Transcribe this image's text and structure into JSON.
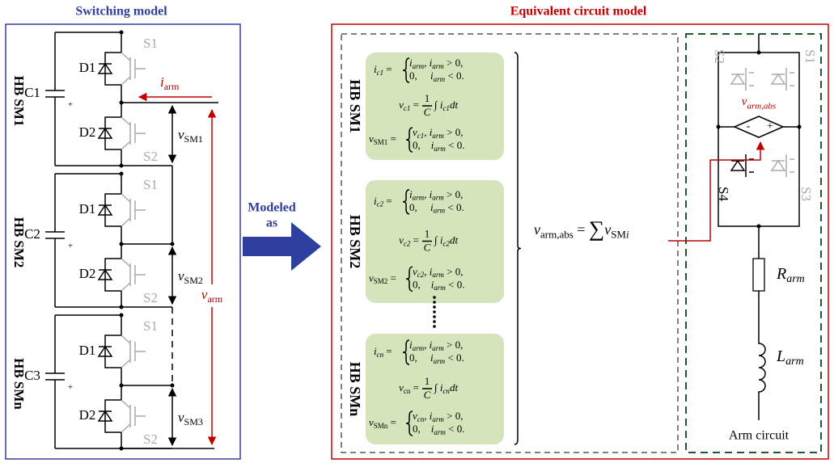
{
  "left": {
    "title": "Switching model",
    "current": [
      {
        "it": "i"
      },
      {
        "subr": "arm"
      }
    ],
    "arm_voltage": [
      {
        "it": "v"
      },
      {
        "subr": "arm"
      }
    ],
    "submodules": [
      {
        "name": "HB SM1",
        "capacitor": "C1",
        "plus": "+",
        "diode1": "D1",
        "diode2": "D2",
        "switch1": "S1",
        "switch2": "S2",
        "voltage": [
          {
            "it": "v"
          },
          {
            "subr": "SM1"
          }
        ]
      },
      {
        "name": "HB SM2",
        "capacitor": "C2",
        "plus": "+",
        "diode1": "D1",
        "diode2": "D2",
        "switch1": "S1",
        "switch2": "S2",
        "voltage": [
          {
            "it": "v"
          },
          {
            "subr": "SM2"
          }
        ]
      },
      {
        "name": "HB SMn",
        "capacitor": "C3",
        "plus": "+",
        "diode1": "D1",
        "diode2": "D2",
        "switch1": "S1",
        "switch2": "S2",
        "voltage": [
          {
            "it": "v"
          },
          {
            "subr": "SM3"
          }
        ]
      }
    ]
  },
  "middle": {
    "label": [
      "Modeled",
      "as"
    ]
  },
  "right": {
    "title": "Equivalent circuit model",
    "submodule_labels": [
      "HB SM1",
      "HB SM2",
      "HB SMn"
    ],
    "blocks": [
      {
        "i_lhs": [
          {
            "it": "i"
          },
          {
            "sub": "c1"
          },
          {
            "t": " ="
          }
        ],
        "i_cases": [
          [
            {
              "it": "i"
            },
            {
              "sub": "arm"
            },
            {
              "t": ", "
            },
            {
              "it": "i"
            },
            {
              "sub": "arm"
            },
            {
              "t": " > 0,"
            }
          ],
          [
            {
              "t": "0,     "
            },
            {
              "it": "i"
            },
            {
              "sub": "arm"
            },
            {
              "t": " < 0."
            }
          ]
        ],
        "v_lhs": [
          {
            "it": "v"
          },
          {
            "sub": "c1"
          },
          {
            "t": " ="
          }
        ],
        "frac": {
          "num": "1",
          "den": "C"
        },
        "v_rhs": [
          {
            "t": "∫ "
          },
          {
            "it": "i"
          },
          {
            "sub": "c1"
          },
          {
            "it": "dt"
          }
        ],
        "vsm_lhs": [
          {
            "it": "v"
          },
          {
            "subr": "SM1"
          },
          {
            "t": " ="
          }
        ],
        "vsm_cases": [
          [
            {
              "it": "v"
            },
            {
              "sub": "c1"
            },
            {
              "t": ", "
            },
            {
              "it": "i"
            },
            {
              "sub": "arm"
            },
            {
              "t": " > 0,"
            }
          ],
          [
            {
              "t": "0,    "
            },
            {
              "it": "i"
            },
            {
              "sub": "arm"
            },
            {
              "t": " < 0."
            }
          ]
        ]
      },
      {
        "i_lhs": [
          {
            "it": "i"
          },
          {
            "sub": "c2"
          },
          {
            "t": " ="
          }
        ],
        "i_cases": [
          [
            {
              "it": "i"
            },
            {
              "sub": "arm"
            },
            {
              "t": ", "
            },
            {
              "it": "i"
            },
            {
              "sub": "arm"
            },
            {
              "t": " > 0,"
            }
          ],
          [
            {
              "t": "0,     "
            },
            {
              "it": "i"
            },
            {
              "sub": "arm"
            },
            {
              "t": " < 0."
            }
          ]
        ],
        "v_lhs": [
          {
            "it": "v"
          },
          {
            "sub": "c2"
          },
          {
            "t": " ="
          }
        ],
        "frac": {
          "num": "1",
          "den": "C"
        },
        "v_rhs": [
          {
            "t": "∫ "
          },
          {
            "it": "i"
          },
          {
            "sub": "c2"
          },
          {
            "it": "dt"
          }
        ],
        "vsm_lhs": [
          {
            "it": "v"
          },
          {
            "subr": "SM2"
          },
          {
            "t": " ="
          }
        ],
        "vsm_cases": [
          [
            {
              "it": "v"
            },
            {
              "sub": "c2"
            },
            {
              "t": ", "
            },
            {
              "it": "i"
            },
            {
              "sub": "arm"
            },
            {
              "t": " > 0,"
            }
          ],
          [
            {
              "t": "0,    "
            },
            {
              "it": "i"
            },
            {
              "sub": "arm"
            },
            {
              "t": " < 0."
            }
          ]
        ]
      },
      {
        "i_lhs": [
          {
            "it": "i"
          },
          {
            "sub": "cn"
          },
          {
            "t": " ="
          }
        ],
        "i_cases": [
          [
            {
              "it": "i"
            },
            {
              "sub": "arm"
            },
            {
              "t": ", "
            },
            {
              "it": "i"
            },
            {
              "sub": "arm"
            },
            {
              "t": " > 0,"
            }
          ],
          [
            {
              "t": "0,     "
            },
            {
              "it": "i"
            },
            {
              "sub": "arm"
            },
            {
              "t": " < 0."
            }
          ]
        ],
        "v_lhs": [
          {
            "it": "v"
          },
          {
            "subr": "cn"
          },
          {
            "t": " ="
          }
        ],
        "frac": {
          "num": "1",
          "den": "C"
        },
        "v_rhs": [
          {
            "t": "∫ "
          },
          {
            "it": "i"
          },
          {
            "sub": "cn"
          },
          {
            "it": "dt"
          }
        ],
        "vsm_lhs": [
          {
            "it": "v"
          },
          {
            "subr": "SMn"
          },
          {
            "t": " ="
          }
        ],
        "vsm_cases": [
          [
            {
              "it": "v"
            },
            {
              "sub": "cn"
            },
            {
              "t": ", "
            },
            {
              "it": "i"
            },
            {
              "sub": "arm"
            },
            {
              "t": " > 0,"
            }
          ],
          [
            {
              "t": "0,    "
            },
            {
              "it": "i"
            },
            {
              "sub": "arm"
            },
            {
              "t": " < 0."
            }
          ]
        ]
      }
    ],
    "sum": [
      {
        "it": "v"
      },
      {
        "subr": "arm,abs"
      },
      {
        "t": " = "
      },
      {
        "t": "∑"
      },
      {
        "it": "v"
      },
      {
        "subr": "SM"
      },
      {
        "sub": "i"
      }
    ],
    "arm": {
      "switches": [
        "S2",
        "S1",
        "S4",
        "S3"
      ],
      "source": [
        {
          "it": "v"
        },
        {
          "sub": "arm,abs"
        }
      ],
      "minus": "-",
      "plus": "+",
      "resistor": [
        {
          "it": "R"
        },
        {
          "sub": "arm"
        }
      ],
      "inductor": [
        {
          "it": "L"
        },
        {
          "sub": "arm"
        }
      ],
      "caption": "Arm circuit"
    }
  }
}
